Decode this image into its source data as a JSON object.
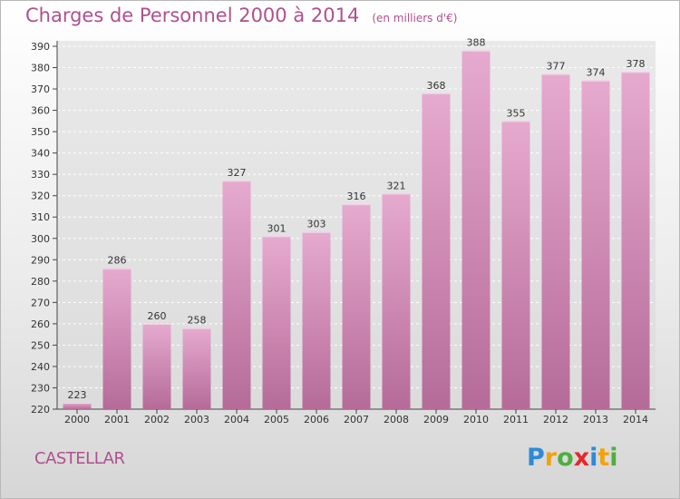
{
  "title": "Charges de Personnel 2000 à 2014",
  "subtitle": "(en milliers d'€)",
  "commune": "CASTELLAR",
  "logo": {
    "text": "Proxiti",
    "letters": [
      {
        "ch": "P",
        "color": "#2e8ad8"
      },
      {
        "ch": "r",
        "color": "#f2a20c"
      },
      {
        "ch": "o",
        "color": "#4daf3e"
      },
      {
        "ch": "x",
        "color": "#e8262c"
      },
      {
        "ch": "i",
        "color": "#2e8ad8"
      },
      {
        "ch": "t",
        "color": "#f2a20c"
      },
      {
        "ch": "i",
        "color": "#4daf3e"
      }
    ]
  },
  "colors": {
    "bar_top": "#e6aacf",
    "bar_bottom": "#b56b98",
    "title": "#b0508e",
    "grid": "#ffffff"
  },
  "chart_data": {
    "type": "bar",
    "categories": [
      "2000",
      "2001",
      "2002",
      "2003",
      "2004",
      "2005",
      "2006",
      "2007",
      "2008",
      "2009",
      "2010",
      "2011",
      "2012",
      "2013",
      "2014"
    ],
    "values": [
      223,
      286,
      260,
      258,
      327,
      301,
      303,
      316,
      321,
      368,
      388,
      355,
      377,
      374,
      378
    ],
    "ylim": [
      220,
      390
    ],
    "ytick_step": 10,
    "grid": true
  }
}
